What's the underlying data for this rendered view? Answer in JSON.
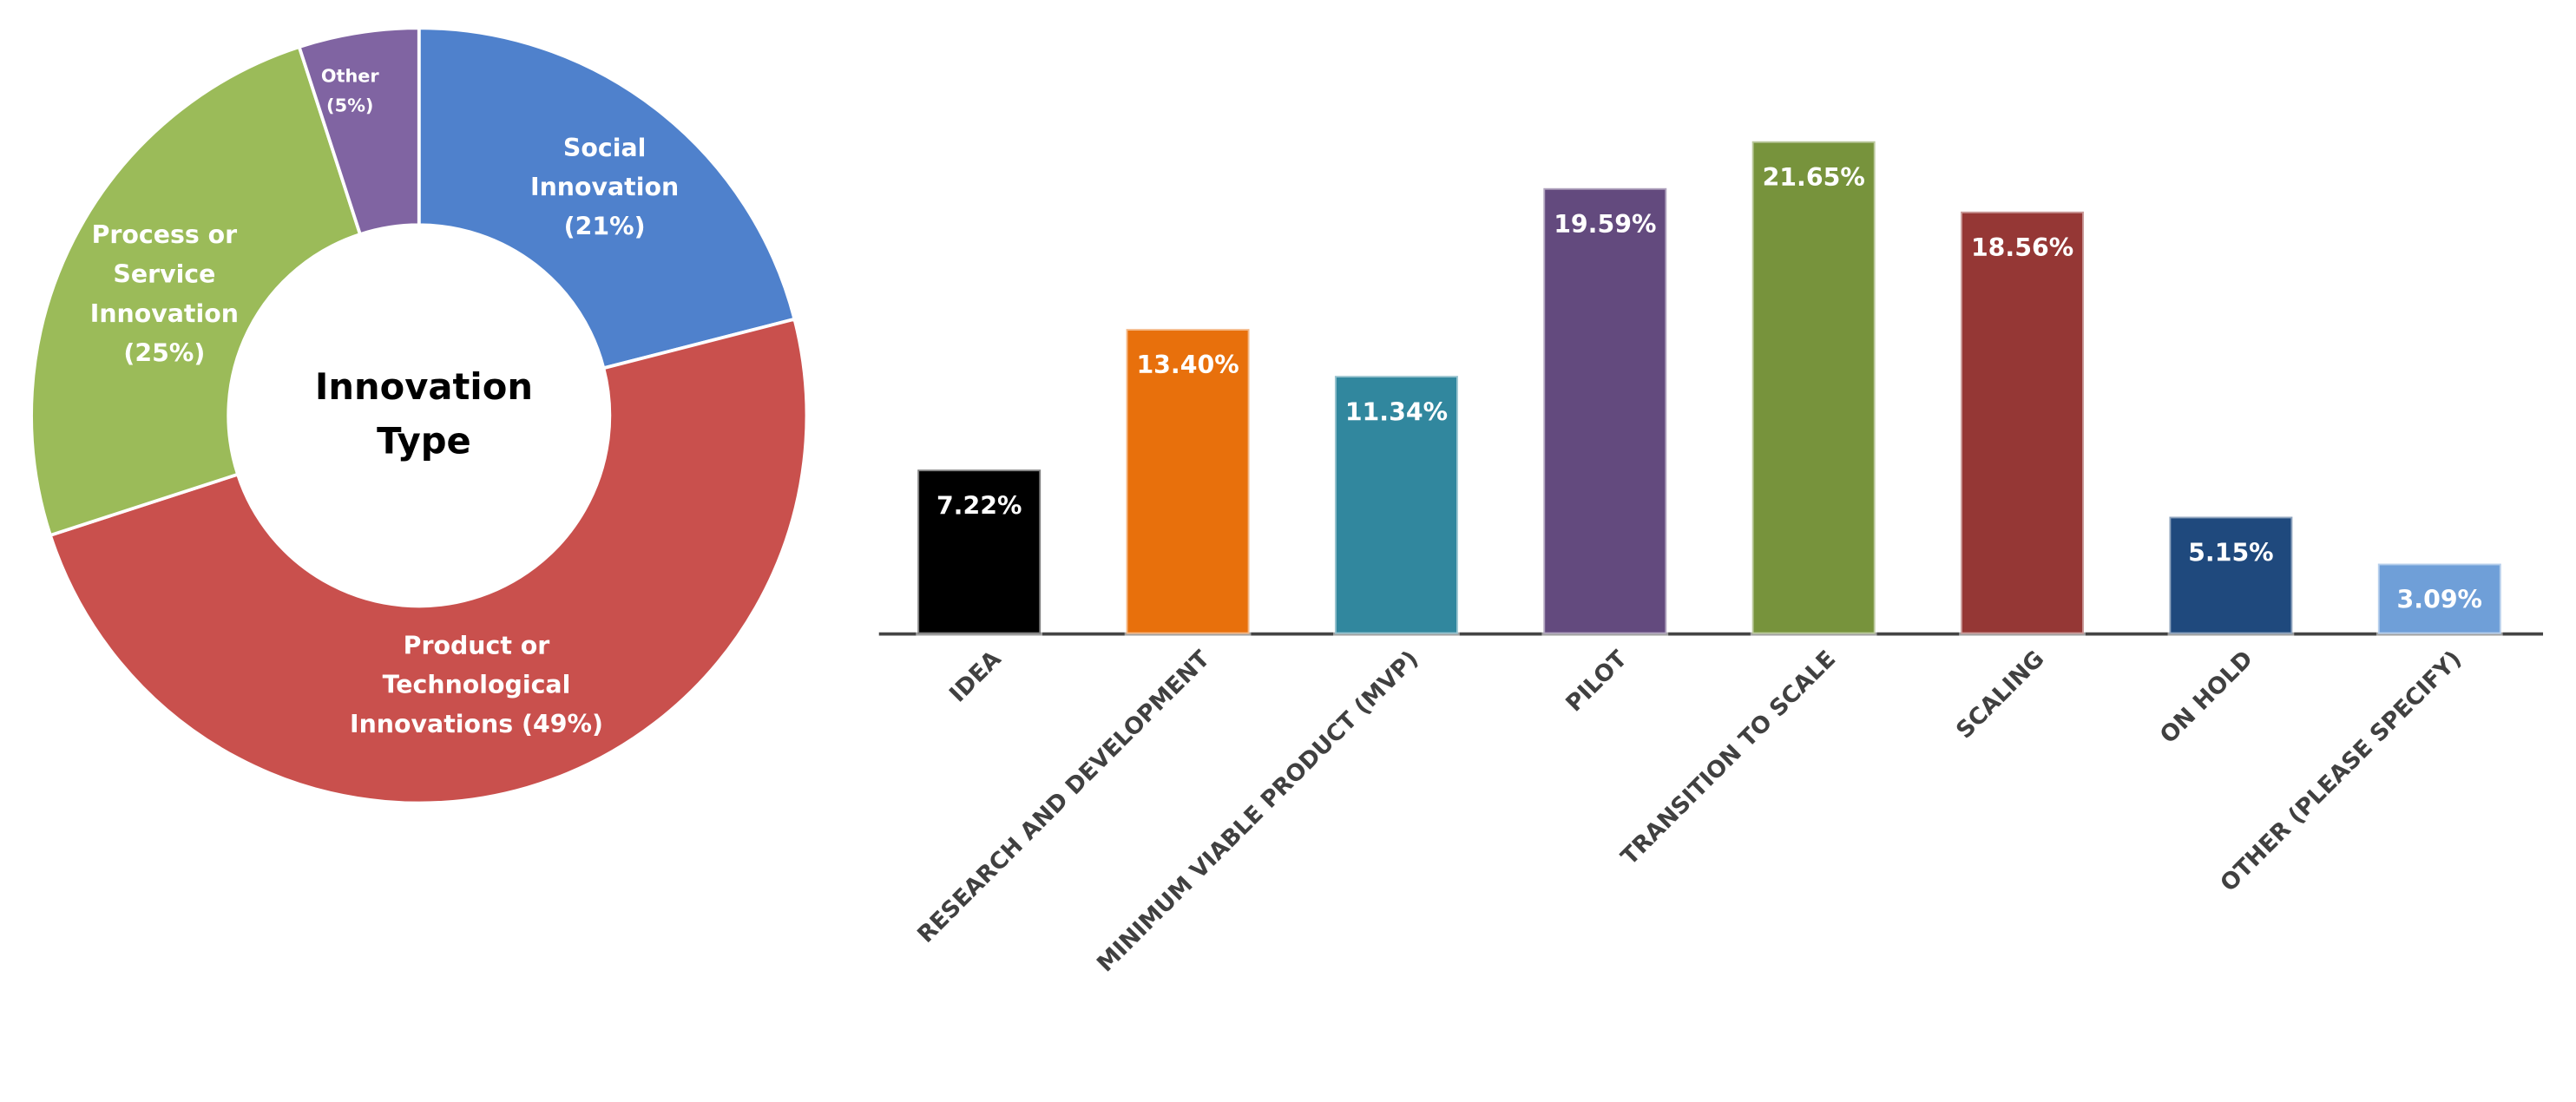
{
  "chart_data": [
    {
      "type": "donut",
      "title": "Innovation Type",
      "categories": [
        "Social Innovation",
        "Product or Technological Innovations",
        "Process or Service Innovation",
        "Other"
      ],
      "values": [
        21,
        49,
        25,
        5
      ],
      "value_labels": [
        "(21%)",
        "(49%)",
        "(25%)",
        "(5%)"
      ],
      "colors": [
        "#4f81cc",
        "#c9504d",
        "#9bbb59",
        "#8064a2"
      ]
    },
    {
      "type": "bar",
      "categories": [
        "IDEA",
        "RESEARCH AND DEVELOPMENT",
        "MINIMUM VIABLE PRODUCT (MVP)",
        "PILOT",
        "TRANSITION TO SCALE",
        "SCALING",
        "ON HOLD",
        "OTHER (PLEASE SPECIFY)"
      ],
      "values": [
        7.22,
        13.4,
        11.34,
        19.59,
        21.65,
        18.56,
        5.15,
        3.09
      ],
      "value_labels": [
        "7.22%",
        "13.40%",
        "11.34%",
        "19.59%",
        "21.65%",
        "18.56%",
        "5.15%",
        "3.09%"
      ],
      "colors": [
        "#000000",
        "#e8700c",
        "#31879e",
        "#634a7e",
        "#77933c",
        "#953735",
        "#1f497d",
        "#6f9fd8"
      ]
    }
  ]
}
